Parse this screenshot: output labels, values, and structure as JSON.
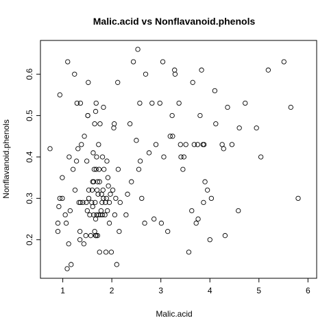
{
  "chart_data": {
    "type": "scatter",
    "title": "Malic.acid vs Nonflavanoid.phenols",
    "xlabel": "Malic.acid",
    "ylabel": "Nonflavanoid.phenols",
    "xlim": [
      0.74,
      5.8
    ],
    "ylim": [
      0.13,
      0.66
    ],
    "xticks": [
      1,
      2,
      3,
      4,
      5,
      6
    ],
    "yticks": [
      0.2,
      0.3,
      0.4,
      0.5,
      0.6
    ],
    "grid": false,
    "legend": "none",
    "point_color": "#000000",
    "points": [
      [
        0.74,
        0.42
      ],
      [
        0.9,
        0.22
      ],
      [
        0.9,
        0.24
      ],
      [
        0.92,
        0.28
      ],
      [
        0.94,
        0.3
      ],
      [
        0.94,
        0.55
      ],
      [
        0.99,
        0.3
      ],
      [
        0.99,
        0.35
      ],
      [
        1.05,
        0.26
      ],
      [
        1.07,
        0.24
      ],
      [
        1.09,
        0.13
      ],
      [
        1.1,
        0.63
      ],
      [
        1.12,
        0.19
      ],
      [
        1.13,
        0.4
      ],
      [
        1.15,
        0.27
      ],
      [
        1.17,
        0.14
      ],
      [
        1.21,
        0.37
      ],
      [
        1.24,
        0.6
      ],
      [
        1.25,
        0.32
      ],
      [
        1.28,
        0.39
      ],
      [
        1.29,
        0.53
      ],
      [
        1.31,
        0.42
      ],
      [
        1.33,
        0.29
      ],
      [
        1.35,
        0.22
      ],
      [
        1.35,
        0.2
      ],
      [
        1.36,
        0.53
      ],
      [
        1.36,
        0.29
      ],
      [
        1.38,
        0.43
      ],
      [
        1.41,
        0.29
      ],
      [
        1.43,
        0.19
      ],
      [
        1.44,
        0.45
      ],
      [
        1.47,
        0.21
      ],
      [
        1.48,
        0.29
      ],
      [
        1.49,
        0.39
      ],
      [
        1.5,
        0.27
      ],
      [
        1.51,
        0.5
      ],
      [
        1.51,
        0.5
      ],
      [
        1.52,
        0.58
      ],
      [
        1.53,
        0.3
      ],
      [
        1.53,
        0.32
      ],
      [
        1.55,
        0.26
      ],
      [
        1.57,
        0.21
      ],
      [
        1.59,
        0.29
      ],
      [
        1.6,
        0.32
      ],
      [
        1.61,
        0.34
      ],
      [
        1.61,
        0.28
      ],
      [
        1.62,
        0.41
      ],
      [
        1.63,
        0.26
      ],
      [
        1.63,
        0.34
      ],
      [
        1.64,
        0.37
      ],
      [
        1.65,
        0.22
      ],
      [
        1.65,
        0.48
      ],
      [
        1.66,
        0.29
      ],
      [
        1.67,
        0.51
      ],
      [
        1.67,
        0.21
      ],
      [
        1.67,
        0.25
      ],
      [
        1.68,
        0.53
      ],
      [
        1.68,
        0.37
      ],
      [
        1.68,
        0.21
      ],
      [
        1.69,
        0.4
      ],
      [
        1.69,
        0.26
      ],
      [
        1.7,
        0.32
      ],
      [
        1.71,
        0.34
      ],
      [
        1.71,
        0.21
      ],
      [
        1.72,
        0.31
      ],
      [
        1.73,
        0.26
      ],
      [
        1.73,
        0.43
      ],
      [
        1.74,
        0.37
      ],
      [
        1.75,
        0.34
      ],
      [
        1.75,
        0.17
      ],
      [
        1.76,
        0.48
      ],
      [
        1.77,
        0.26
      ],
      [
        1.78,
        0.27
      ],
      [
        1.79,
        0.31
      ],
      [
        1.8,
        0.29
      ],
      [
        1.81,
        0.26
      ],
      [
        1.81,
        0.4
      ],
      [
        1.82,
        0.32
      ],
      [
        1.83,
        0.3
      ],
      [
        1.83,
        0.52
      ],
      [
        1.84,
        0.37
      ],
      [
        1.86,
        0.26
      ],
      [
        1.87,
        0.29
      ],
      [
        1.88,
        0.17
      ],
      [
        1.89,
        0.3
      ],
      [
        1.9,
        0.39
      ],
      [
        1.91,
        0.27
      ],
      [
        1.92,
        0.35
      ],
      [
        1.93,
        0.33
      ],
      [
        1.95,
        0.24
      ],
      [
        1.95,
        0.29
      ],
      [
        1.97,
        0.31
      ],
      [
        1.99,
        0.17
      ],
      [
        2.02,
        0.32
      ],
      [
        2.04,
        0.47
      ],
      [
        2.05,
        0.48
      ],
      [
        2.06,
        0.26
      ],
      [
        2.08,
        0.3
      ],
      [
        2.1,
        0.14
      ],
      [
        2.12,
        0.58
      ],
      [
        2.13,
        0.37
      ],
      [
        2.15,
        0.22
      ],
      [
        2.17,
        0.29
      ],
      [
        2.29,
        0.26
      ],
      [
        2.32,
        0.31
      ],
      [
        2.37,
        0.48
      ],
      [
        2.4,
        0.34
      ],
      [
        2.44,
        0.63
      ],
      [
        2.5,
        0.44
      ],
      [
        2.53,
        0.66
      ],
      [
        2.55,
        0.37
      ],
      [
        2.57,
        0.53
      ],
      [
        2.58,
        0.39
      ],
      [
        2.61,
        0.3
      ],
      [
        2.67,
        0.24
      ],
      [
        2.69,
        0.6
      ],
      [
        2.76,
        0.41
      ],
      [
        2.82,
        0.53
      ],
      [
        2.86,
        0.25
      ],
      [
        2.9,
        0.43
      ],
      [
        2.98,
        0.53
      ],
      [
        3.01,
        0.24
      ],
      [
        3.04,
        0.63
      ],
      [
        3.06,
        0.4
      ],
      [
        3.14,
        0.22
      ],
      [
        3.19,
        0.45
      ],
      [
        3.23,
        0.5
      ],
      [
        3.24,
        0.45
      ],
      [
        3.28,
        0.61
      ],
      [
        3.29,
        0.6
      ],
      [
        3.37,
        0.53
      ],
      [
        3.4,
        0.43
      ],
      [
        3.41,
        0.4
      ],
      [
        3.45,
        0.37
      ],
      [
        3.47,
        0.4
      ],
      [
        3.51,
        0.43
      ],
      [
        3.57,
        0.17
      ],
      [
        3.63,
        0.27
      ],
      [
        3.65,
        0.58
      ],
      [
        3.68,
        0.43
      ],
      [
        3.72,
        0.24
      ],
      [
        3.75,
        0.43
      ],
      [
        3.76,
        0.25
      ],
      [
        3.8,
        0.5
      ],
      [
        3.83,
        0.61
      ],
      [
        3.86,
        0.43
      ],
      [
        3.87,
        0.29
      ],
      [
        3.88,
        0.43
      ],
      [
        3.9,
        0.34
      ],
      [
        3.95,
        0.32
      ],
      [
        4.0,
        0.2
      ],
      [
        4.03,
        0.3
      ],
      [
        4.1,
        0.56
      ],
      [
        4.12,
        0.48
      ],
      [
        4.25,
        0.43
      ],
      [
        4.28,
        0.42
      ],
      [
        4.31,
        0.21
      ],
      [
        4.36,
        0.52
      ],
      [
        4.45,
        0.43
      ],
      [
        4.58,
        0.27
      ],
      [
        4.6,
        0.47
      ],
      [
        4.72,
        0.53
      ],
      [
        4.95,
        0.47
      ],
      [
        5.04,
        0.4
      ],
      [
        5.19,
        0.61
      ],
      [
        5.51,
        0.63
      ],
      [
        5.65,
        0.52
      ],
      [
        5.8,
        0.3
      ]
    ]
  }
}
